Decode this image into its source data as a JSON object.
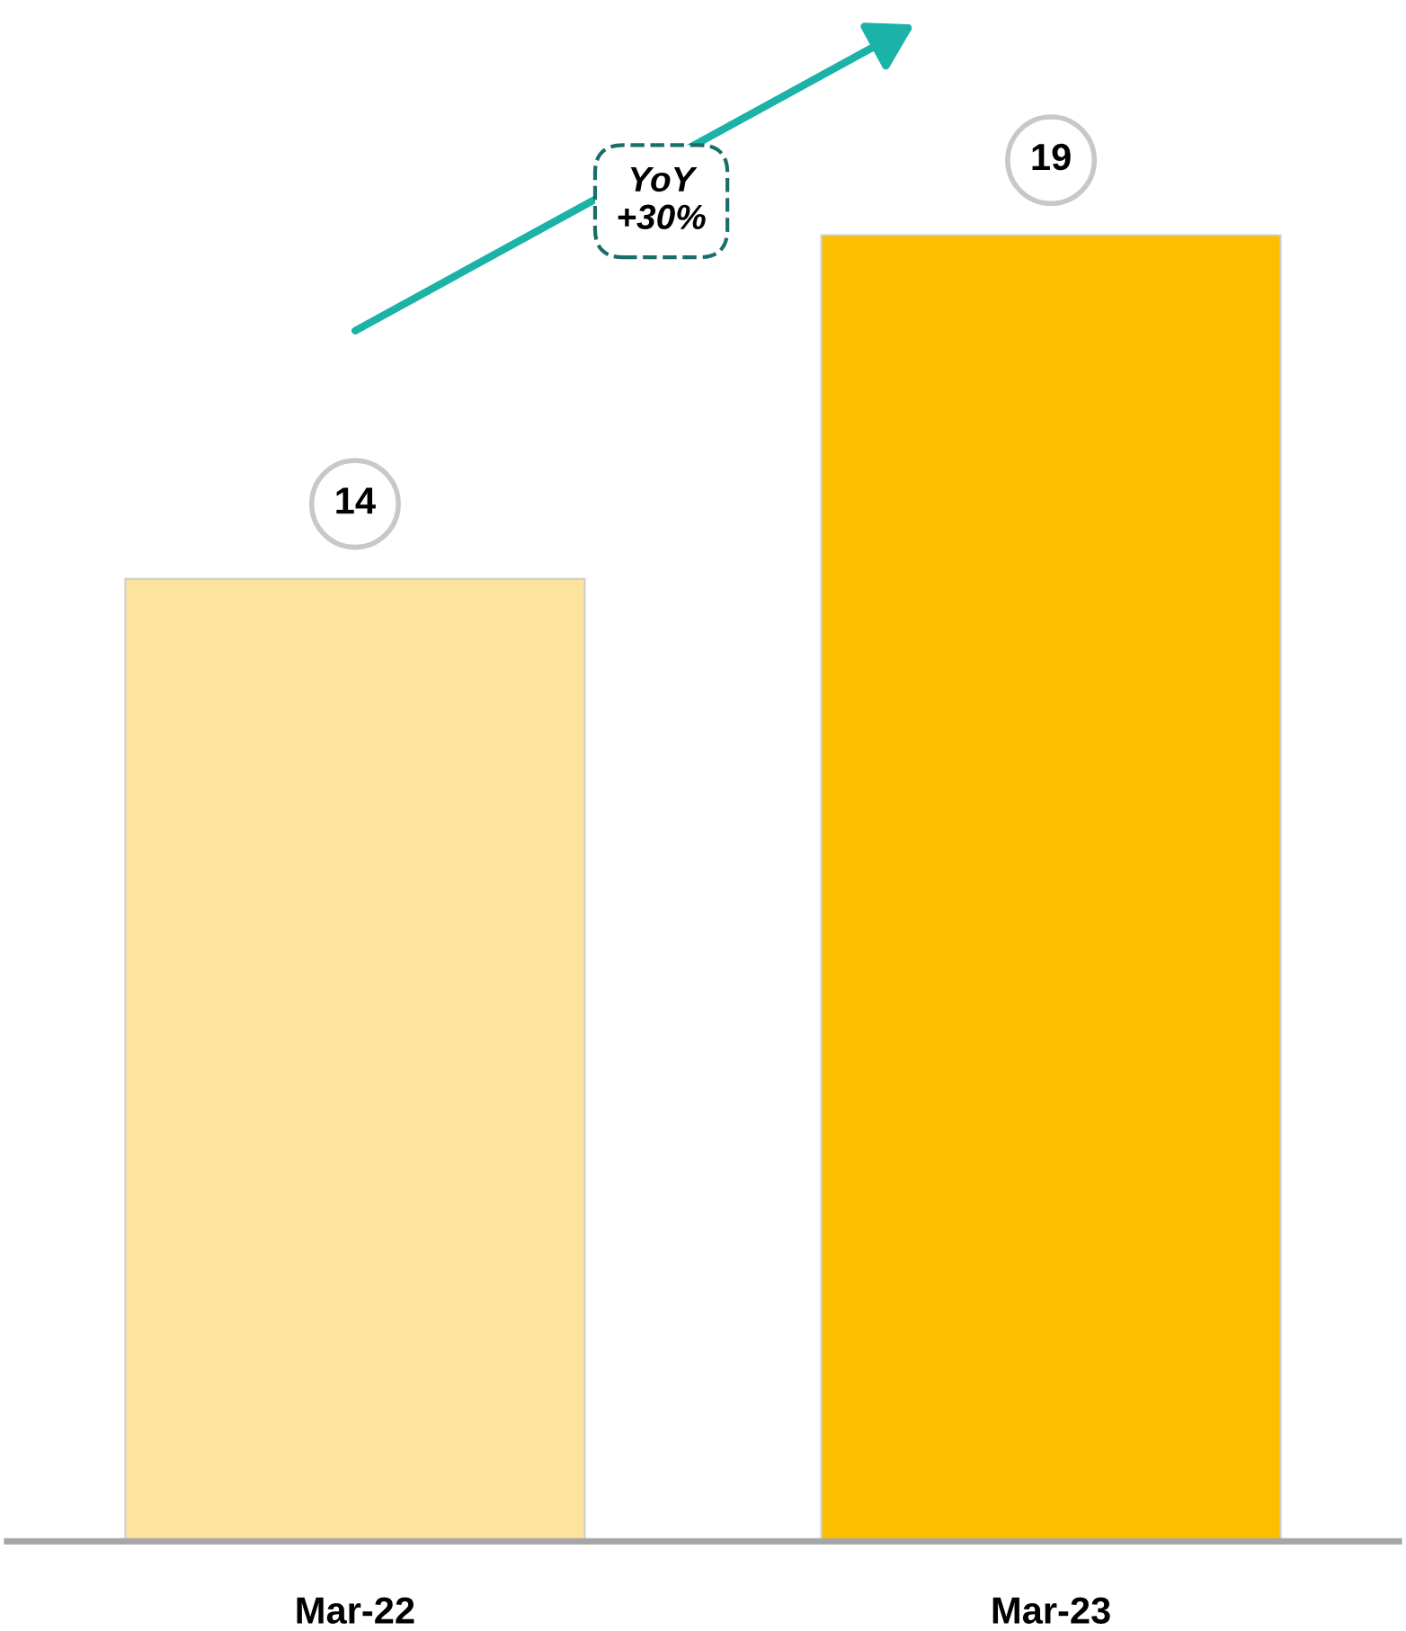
{
  "chart_data": {
    "type": "bar",
    "categories": [
      "Mar-22",
      "Mar-23"
    ],
    "values": [
      14,
      19
    ],
    "colors": [
      "#fde49c",
      "#fcbf00"
    ],
    "data_labels": true,
    "tick_labels": "x",
    "annotations": [
      "YoY\n+30%"
    ]
  }
}
